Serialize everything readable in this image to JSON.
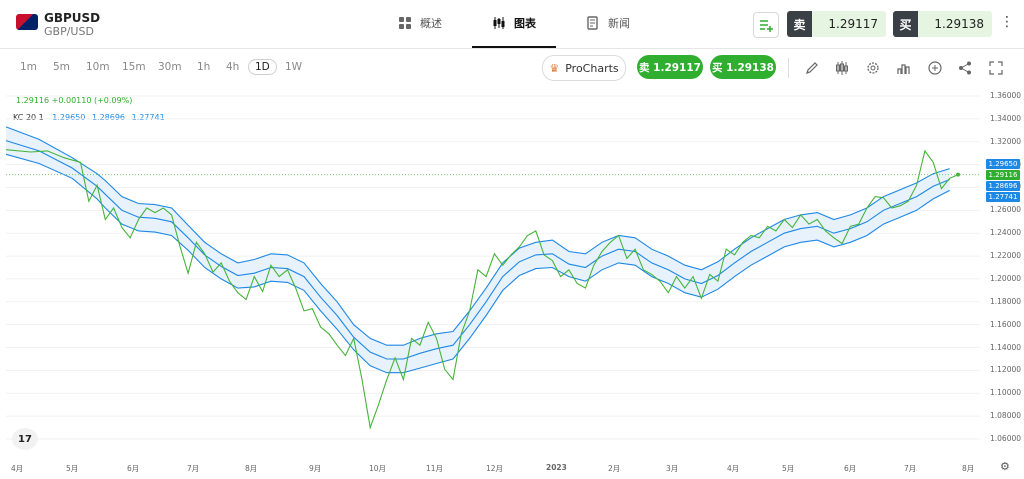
{
  "header": {
    "symbol": "GBPUSD",
    "symbol_sub": "GBP/USD",
    "tabs": [
      {
        "label": "概述",
        "icon": "grid-icon"
      },
      {
        "label": "图表",
        "icon": "candles-icon"
      },
      {
        "label": "新闻",
        "icon": "news-icon"
      }
    ],
    "sell_label": "卖",
    "sell_price": "1.29117",
    "buy_label": "买",
    "buy_price": "1.29138",
    "more_label": "⋮"
  },
  "toolbar": {
    "timeframes": [
      "1m",
      "5m",
      "10m",
      "15m",
      "30m",
      "1h",
      "4h",
      "1D",
      "1W"
    ],
    "selected_timeframe": "1D",
    "procharts_label": "ProCharts",
    "sell_button": "卖 1.29117",
    "buy_button": "买 1.29138"
  },
  "legend": {
    "price": "1.29116",
    "change": "+0.00110 (+0.09%)",
    "kc_label": "KC 20 1",
    "kc_upper": "1.29650",
    "kc_mid": "1.28696",
    "kc_lower": "1.27741"
  },
  "tags": {
    "upper": "1.29650",
    "price": "1.29116",
    "mid": "1.28696",
    "lower": "1.27741"
  },
  "colors": {
    "price_line": "#46b43a",
    "band_line": "#1e88e5",
    "band_fill": "#e7f2fc",
    "up_green": "#2fae2f"
  },
  "chart_data": {
    "type": "line",
    "y_ticks": [
      "1.36000",
      "1.34000",
      "1.32000",
      "1.30000",
      "1.28000",
      "1.26000",
      "1.24000",
      "1.22000",
      "1.20000",
      "1.18000",
      "1.16000",
      "1.14000",
      "1.12000",
      "1.10000",
      "1.08000",
      "1.06000"
    ],
    "ylim": [
      1.05,
      1.365
    ],
    "x_labels": [
      "4月",
      "5月",
      "6月",
      "7月",
      "8月",
      "9月",
      "10月",
      "11月",
      "12月",
      "2023",
      "2月",
      "3月",
      "4月",
      "5月",
      "6月",
      "7月",
      "8月"
    ],
    "price": [
      [
        0,
        1.313
      ],
      [
        1.5,
        1.311
      ],
      [
        2.5,
        1.312
      ],
      [
        3.5,
        1.306
      ],
      [
        4.5,
        1.302
      ],
      [
        5,
        1.268
      ],
      [
        5.5,
        1.282
      ],
      [
        6,
        1.252
      ],
      [
        6.5,
        1.262
      ],
      [
        7,
        1.245
      ],
      [
        7.5,
        1.236
      ],
      [
        8,
        1.252
      ],
      [
        8.5,
        1.262
      ],
      [
        9,
        1.258
      ],
      [
        9.5,
        1.262
      ],
      [
        10,
        1.256
      ],
      [
        10.5,
        1.229
      ],
      [
        11,
        1.205
      ],
      [
        11.5,
        1.232
      ],
      [
        12,
        1.222
      ],
      [
        12.5,
        1.206
      ],
      [
        13,
        1.214
      ],
      [
        13.5,
        1.198
      ],
      [
        14,
        1.188
      ],
      [
        14.5,
        1.182
      ],
      [
        15,
        1.202
      ],
      [
        15.5,
        1.189
      ],
      [
        16,
        1.212
      ],
      [
        16.5,
        1.202
      ],
      [
        17,
        1.208
      ],
      [
        17.5,
        1.192
      ],
      [
        18,
        1.172
      ],
      [
        18.5,
        1.174
      ],
      [
        19,
        1.158
      ],
      [
        19.5,
        1.152
      ],
      [
        20,
        1.142
      ],
      [
        20.5,
        1.133
      ],
      [
        21,
        1.148
      ],
      [
        21.5,
        1.112
      ],
      [
        22,
        1.07
      ],
      [
        22.5,
        1.09
      ],
      [
        23,
        1.112
      ],
      [
        23.5,
        1.131
      ],
      [
        24,
        1.112
      ],
      [
        24.5,
        1.148
      ],
      [
        25,
        1.142
      ],
      [
        25.5,
        1.162
      ],
      [
        26,
        1.148
      ],
      [
        26.5,
        1.121
      ],
      [
        27,
        1.112
      ],
      [
        27.5,
        1.152
      ],
      [
        28,
        1.172
      ],
      [
        28.5,
        1.208
      ],
      [
        29,
        1.202
      ],
      [
        29.5,
        1.222
      ],
      [
        30,
        1.212
      ],
      [
        30.5,
        1.221
      ],
      [
        31,
        1.228
      ],
      [
        31.5,
        1.238
      ],
      [
        32,
        1.242
      ],
      [
        32.5,
        1.221
      ],
      [
        33,
        1.216
      ],
      [
        33.5,
        1.202
      ],
      [
        34,
        1.208
      ],
      [
        34.5,
        1.196
      ],
      [
        35,
        1.192
      ],
      [
        35.5,
        1.212
      ],
      [
        36,
        1.224
      ],
      [
        36.5,
        1.232
      ],
      [
        37,
        1.238
      ],
      [
        37.5,
        1.218
      ],
      [
        38,
        1.226
      ],
      [
        38.5,
        1.208
      ],
      [
        39,
        1.204
      ],
      [
        39.5,
        1.198
      ],
      [
        40,
        1.188
      ],
      [
        40.5,
        1.202
      ],
      [
        41,
        1.192
      ],
      [
        41.5,
        1.202
      ],
      [
        42,
        1.183
      ],
      [
        42.5,
        1.204
      ],
      [
        43,
        1.198
      ],
      [
        43.5,
        1.226
      ],
      [
        44,
        1.221
      ],
      [
        44.5,
        1.232
      ],
      [
        45,
        1.238
      ],
      [
        45.5,
        1.236
      ],
      [
        46,
        1.246
      ],
      [
        46.5,
        1.242
      ],
      [
        47,
        1.252
      ],
      [
        47.5,
        1.245
      ],
      [
        48,
        1.256
      ],
      [
        48.5,
        1.248
      ],
      [
        49,
        1.252
      ],
      [
        49.5,
        1.242
      ],
      [
        50,
        1.236
      ],
      [
        50.5,
        1.231
      ],
      [
        51,
        1.246
      ],
      [
        51.5,
        1.248
      ],
      [
        52,
        1.262
      ],
      [
        52.5,
        1.272
      ],
      [
        53,
        1.271
      ],
      [
        53.5,
        1.262
      ],
      [
        54,
        1.264
      ],
      [
        54.5,
        1.268
      ],
      [
        55,
        1.282
      ],
      [
        55.5,
        1.312
      ],
      [
        56,
        1.302
      ],
      [
        56.5,
        1.279
      ],
      [
        57,
        1.288
      ],
      [
        57.5,
        1.2912
      ]
    ],
    "kc_upper": [
      [
        0,
        1.333
      ],
      [
        2,
        1.322
      ],
      [
        4,
        1.306
      ],
      [
        5.5,
        1.292
      ],
      [
        6,
        1.286
      ],
      [
        7,
        1.272
      ],
      [
        8,
        1.266
      ],
      [
        9,
        1.265
      ],
      [
        10,
        1.262
      ],
      [
        11,
        1.247
      ],
      [
        12,
        1.232
      ],
      [
        13,
        1.222
      ],
      [
        14,
        1.214
      ],
      [
        15,
        1.217
      ],
      [
        16,
        1.222
      ],
      [
        17,
        1.221
      ],
      [
        18,
        1.214
      ],
      [
        19,
        1.196
      ],
      [
        20,
        1.18
      ],
      [
        21,
        1.16
      ],
      [
        22,
        1.148
      ],
      [
        23,
        1.142
      ],
      [
        24,
        1.142
      ],
      [
        25,
        1.148
      ],
      [
        26,
        1.152
      ],
      [
        27,
        1.154
      ],
      [
        28,
        1.172
      ],
      [
        29,
        1.192
      ],
      [
        30,
        1.214
      ],
      [
        31,
        1.227
      ],
      [
        32,
        1.232
      ],
      [
        33,
        1.234
      ],
      [
        34,
        1.224
      ],
      [
        35,
        1.222
      ],
      [
        36,
        1.232
      ],
      [
        37,
        1.238
      ],
      [
        38,
        1.236
      ],
      [
        39,
        1.226
      ],
      [
        40,
        1.22
      ],
      [
        41,
        1.212
      ],
      [
        42,
        1.208
      ],
      [
        43,
        1.215
      ],
      [
        44,
        1.226
      ],
      [
        45,
        1.236
      ],
      [
        46,
        1.244
      ],
      [
        47,
        1.252
      ],
      [
        48,
        1.256
      ],
      [
        49,
        1.258
      ],
      [
        50,
        1.252
      ],
      [
        51,
        1.256
      ],
      [
        52,
        1.262
      ],
      [
        53,
        1.272
      ],
      [
        54,
        1.278
      ],
      [
        55,
        1.284
      ],
      [
        56,
        1.292
      ],
      [
        57,
        1.2965
      ]
    ],
    "kc_mid": [
      [
        0,
        1.321
      ],
      [
        2,
        1.312
      ],
      [
        4,
        1.297
      ],
      [
        5.5,
        1.281
      ],
      [
        6,
        1.274
      ],
      [
        7,
        1.26
      ],
      [
        8,
        1.254
      ],
      [
        9,
        1.253
      ],
      [
        10,
        1.25
      ],
      [
        11,
        1.236
      ],
      [
        12,
        1.221
      ],
      [
        13,
        1.211
      ],
      [
        14,
        1.203
      ],
      [
        15,
        1.205
      ],
      [
        16,
        1.21
      ],
      [
        17,
        1.209
      ],
      [
        18,
        1.202
      ],
      [
        19,
        1.184
      ],
      [
        20,
        1.168
      ],
      [
        21,
        1.149
      ],
      [
        22,
        1.136
      ],
      [
        23,
        1.13
      ],
      [
        24,
        1.13
      ],
      [
        25,
        1.135
      ],
      [
        26,
        1.139
      ],
      [
        27,
        1.142
      ],
      [
        28,
        1.16
      ],
      [
        29,
        1.18
      ],
      [
        30,
        1.202
      ],
      [
        31,
        1.215
      ],
      [
        32,
        1.221
      ],
      [
        33,
        1.222
      ],
      [
        34,
        1.213
      ],
      [
        35,
        1.21
      ],
      [
        36,
        1.22
      ],
      [
        37,
        1.226
      ],
      [
        38,
        1.224
      ],
      [
        39,
        1.214
      ],
      [
        40,
        1.208
      ],
      [
        41,
        1.2
      ],
      [
        42,
        1.196
      ],
      [
        43,
        1.203
      ],
      [
        44,
        1.214
      ],
      [
        45,
        1.224
      ],
      [
        46,
        1.232
      ],
      [
        47,
        1.24
      ],
      [
        48,
        1.244
      ],
      [
        49,
        1.246
      ],
      [
        50,
        1.24
      ],
      [
        51,
        1.244
      ],
      [
        52,
        1.25
      ],
      [
        53,
        1.26
      ],
      [
        54,
        1.266
      ],
      [
        55,
        1.272
      ],
      [
        56,
        1.281
      ],
      [
        57,
        1.28696
      ]
    ],
    "kc_lower": [
      [
        0,
        1.309
      ],
      [
        2,
        1.301
      ],
      [
        4,
        1.288
      ],
      [
        5.5,
        1.27
      ],
      [
        6,
        1.262
      ],
      [
        7,
        1.248
      ],
      [
        8,
        1.242
      ],
      [
        9,
        1.241
      ],
      [
        10,
        1.238
      ],
      [
        11,
        1.225
      ],
      [
        12,
        1.21
      ],
      [
        13,
        1.2
      ],
      [
        14,
        1.192
      ],
      [
        15,
        1.193
      ],
      [
        16,
        1.198
      ],
      [
        17,
        1.197
      ],
      [
        18,
        1.19
      ],
      [
        19,
        1.172
      ],
      [
        20,
        1.156
      ],
      [
        21,
        1.138
      ],
      [
        22,
        1.124
      ],
      [
        23,
        1.118
      ],
      [
        24,
        1.118
      ],
      [
        25,
        1.122
      ],
      [
        26,
        1.126
      ],
      [
        27,
        1.13
      ],
      [
        28,
        1.148
      ],
      [
        29,
        1.168
      ],
      [
        30,
        1.19
      ],
      [
        31,
        1.203
      ],
      [
        32,
        1.209
      ],
      [
        33,
        1.21
      ],
      [
        34,
        1.202
      ],
      [
        35,
        1.198
      ],
      [
        36,
        1.208
      ],
      [
        37,
        1.214
      ],
      [
        38,
        1.212
      ],
      [
        39,
        1.202
      ],
      [
        40,
        1.196
      ],
      [
        41,
        1.188
      ],
      [
        42,
        1.184
      ],
      [
        43,
        1.191
      ],
      [
        44,
        1.202
      ],
      [
        45,
        1.212
      ],
      [
        46,
        1.22
      ],
      [
        47,
        1.228
      ],
      [
        48,
        1.232
      ],
      [
        49,
        1.234
      ],
      [
        50,
        1.228
      ],
      [
        51,
        1.232
      ],
      [
        52,
        1.238
      ],
      [
        53,
        1.248
      ],
      [
        54,
        1.254
      ],
      [
        55,
        1.26
      ],
      [
        56,
        1.27
      ],
      [
        57,
        1.27741
      ]
    ]
  }
}
